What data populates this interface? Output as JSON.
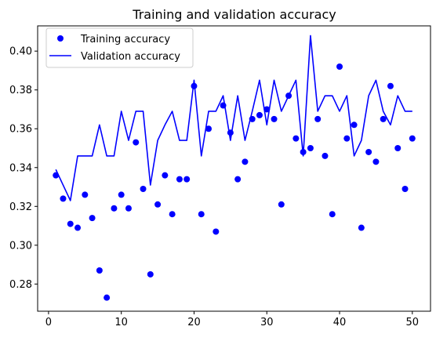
{
  "chart_data": {
    "type": "line",
    "title": "Training and validation accuracy",
    "xlabel": "",
    "ylabel": "",
    "xlim": [
      -1.5,
      52.5
    ],
    "ylim": [
      0.266,
      0.413
    ],
    "xticks": [
      0,
      10,
      20,
      30,
      40,
      50
    ],
    "yticks": [
      0.28,
      0.3,
      0.32,
      0.34,
      0.36,
      0.38,
      0.4
    ],
    "ytick_labels": [
      "0.28",
      "0.30",
      "0.32",
      "0.34",
      "0.36",
      "0.38",
      "0.40"
    ],
    "grid": false,
    "legend_position": "upper-left",
    "x": [
      1,
      2,
      3,
      4,
      5,
      6,
      7,
      8,
      9,
      10,
      11,
      12,
      13,
      14,
      15,
      16,
      17,
      18,
      19,
      20,
      21,
      22,
      23,
      24,
      25,
      26,
      27,
      28,
      29,
      30,
      31,
      32,
      33,
      34,
      35,
      36,
      37,
      38,
      39,
      40,
      41,
      42,
      43,
      44,
      45,
      46,
      47,
      48,
      49,
      50
    ],
    "series": [
      {
        "name": "Training accuracy",
        "style": "markers",
        "color": "#0000ff",
        "values": [
          0.336,
          0.324,
          0.311,
          0.309,
          0.326,
          0.314,
          0.287,
          0.273,
          0.319,
          0.326,
          0.319,
          0.353,
          0.329,
          0.285,
          0.321,
          0.336,
          0.316,
          0.334,
          0.334,
          0.382,
          0.316,
          0.36,
          0.307,
          0.372,
          0.358,
          0.334,
          0.343,
          0.365,
          0.367,
          0.37,
          0.365,
          0.321,
          0.377,
          0.355,
          0.348,
          0.35,
          0.365,
          0.346,
          0.316,
          0.392,
          0.355,
          0.362,
          0.309,
          0.348,
          0.343,
          0.365,
          0.382,
          0.35,
          0.329,
          0.355
        ]
      },
      {
        "name": "Validation accuracy",
        "style": "line",
        "color": "#0000ff",
        "values": [
          0.339,
          0.331,
          0.323,
          0.346,
          0.346,
          0.346,
          0.362,
          0.346,
          0.346,
          0.369,
          0.354,
          0.369,
          0.369,
          0.331,
          0.354,
          0.362,
          0.369,
          0.354,
          0.354,
          0.385,
          0.346,
          0.369,
          0.369,
          0.377,
          0.354,
          0.377,
          0.354,
          0.369,
          0.385,
          0.362,
          0.385,
          0.369,
          0.377,
          0.385,
          0.346,
          0.408,
          0.369,
          0.377,
          0.377,
          0.369,
          0.377,
          0.346,
          0.354,
          0.377,
          0.385,
          0.369,
          0.362,
          0.377,
          0.369,
          0.369
        ]
      }
    ]
  }
}
